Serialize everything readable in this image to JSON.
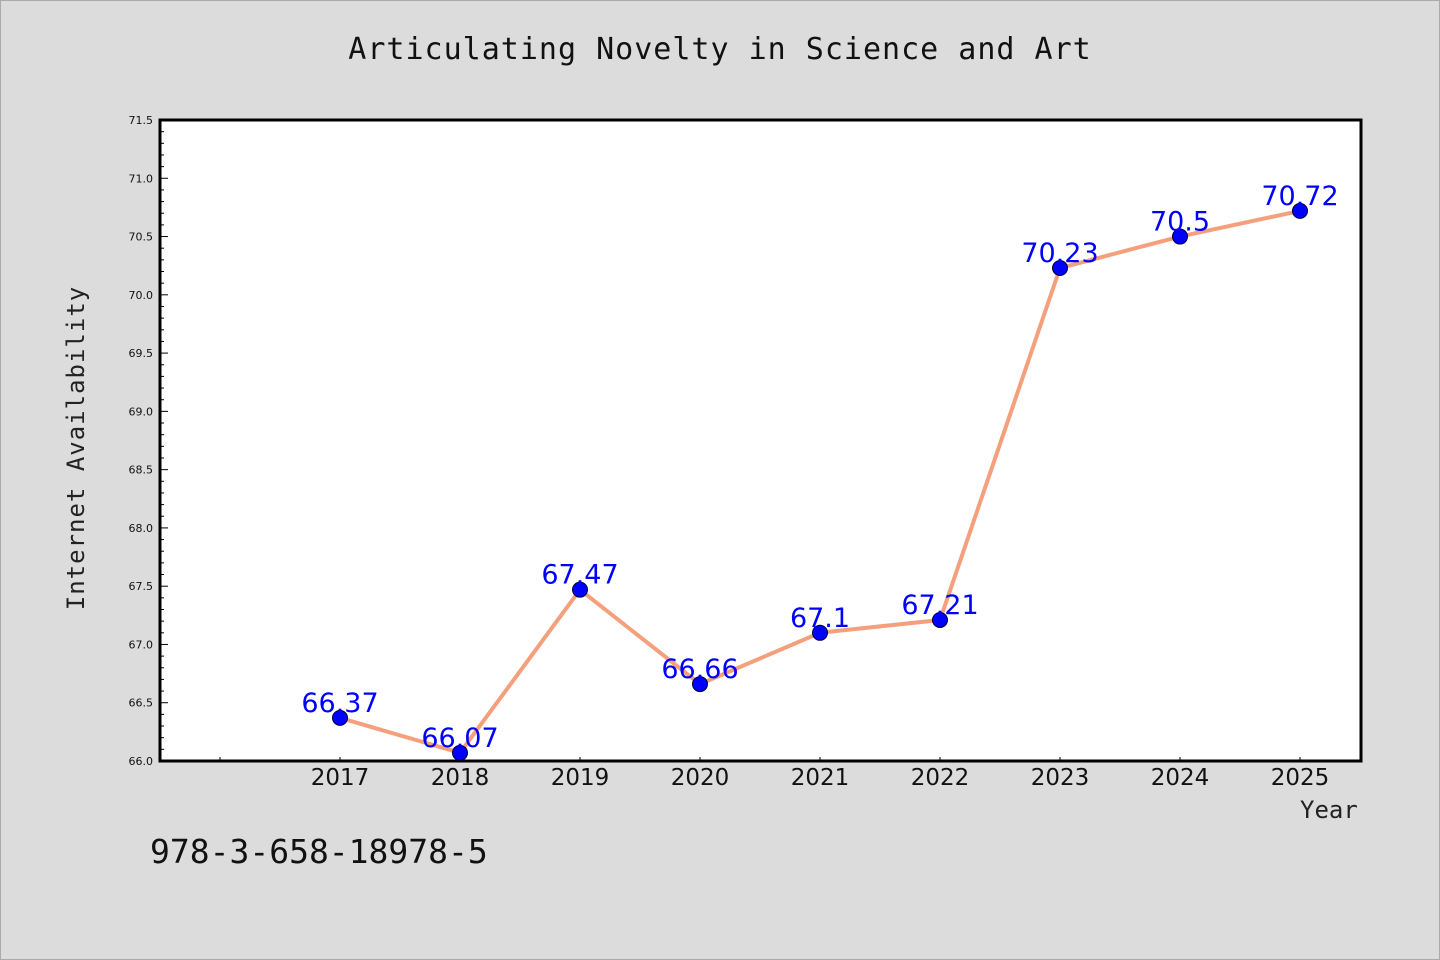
{
  "isbn": "978-3-658-18978-5",
  "chart_data": {
    "type": "line",
    "title": "Articulating Novelty in Science and Art",
    "xlabel": "Year",
    "ylabel": "Internet Availability",
    "categories": [
      "2017",
      "2018",
      "2019",
      "2020",
      "2021",
      "2022",
      "2023",
      "2024",
      "2025"
    ],
    "values": [
      66.37,
      66.07,
      67.47,
      66.66,
      67.1,
      67.21,
      70.23,
      70.5,
      70.72
    ],
    "data_labels": [
      "66.37",
      "66.07",
      "67.47",
      "66.66",
      "67.1",
      "67.21",
      "70.23",
      "70.5",
      "70.72"
    ],
    "ylim": [
      66.0,
      71.5
    ],
    "yticks": [
      "66.0",
      "66.5",
      "67.0",
      "67.5",
      "68.0",
      "68.5",
      "69.0",
      "69.5",
      "70.0",
      "70.5",
      "71.0",
      "71.5"
    ],
    "grid": false,
    "legend": "none",
    "line_color": "#f4a07c",
    "marker_color": "#0000ff",
    "label_color": "#0000ff"
  }
}
